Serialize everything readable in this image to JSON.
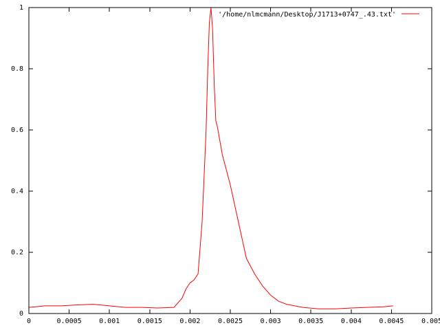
{
  "chart_data": {
    "type": "line",
    "title": "",
    "xlabel": "",
    "ylabel": "",
    "xlim": [
      0,
      0.005
    ],
    "ylim": [
      0,
      1
    ],
    "grid": false,
    "legend_position": "top-right",
    "x_ticks": [
      "0",
      "0.0005",
      "0.001",
      "0.0015",
      "0.002",
      "0.0025",
      "0.003",
      "0.0035",
      "0.004",
      "0.0045",
      "0.005"
    ],
    "y_ticks": [
      "0",
      "0.2",
      "0.4",
      "0.6",
      "0.8",
      "1"
    ],
    "series": [
      {
        "name": "'/home/nlmcmann/Desktop/J1713+0747_.43.txt'",
        "color": "#ff0000",
        "x": [
          0,
          0.0002,
          0.0004,
          0.0006,
          0.0008,
          0.001,
          0.0012,
          0.0014,
          0.0016,
          0.0018,
          0.0019,
          0.00195,
          0.002,
          0.00205,
          0.0021,
          0.00215,
          0.0022,
          0.00222,
          0.00224,
          0.00226,
          0.00228,
          0.0023,
          0.00232,
          0.00234,
          0.00236,
          0.0024,
          0.0025,
          0.0026,
          0.0027,
          0.0028,
          0.0029,
          0.003,
          0.0031,
          0.0032,
          0.0034,
          0.0036,
          0.0038,
          0.004,
          0.0042,
          0.0044,
          0.00452
        ],
        "y": [
          0.02,
          0.025,
          0.025,
          0.028,
          0.03,
          0.025,
          0.02,
          0.02,
          0.018,
          0.02,
          0.05,
          0.08,
          0.1,
          0.11,
          0.13,
          0.3,
          0.6,
          0.8,
          0.95,
          1.0,
          0.93,
          0.75,
          0.63,
          0.61,
          0.58,
          0.52,
          0.42,
          0.3,
          0.18,
          0.13,
          0.09,
          0.06,
          0.04,
          0.03,
          0.02,
          0.015,
          0.015,
          0.018,
          0.02,
          0.022,
          0.025
        ]
      }
    ]
  }
}
